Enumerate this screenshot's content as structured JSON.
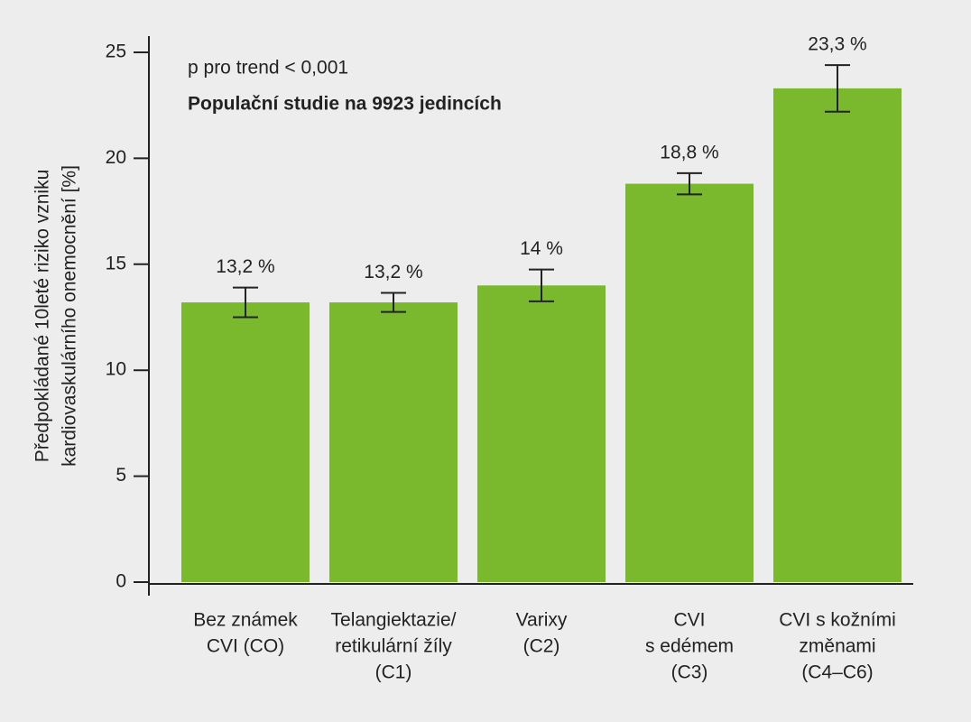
{
  "chart_data": {
    "type": "bar",
    "annotations": [
      "p pro trend < 0,001",
      "Populační studie na 9923 jedincích"
    ],
    "ylabel": [
      "Předpokládané 10leté riziko vzniku",
      "kardiovaskulárního onemocnění [%]"
    ],
    "categories": [
      [
        "Bez známek",
        "CVI (CO)"
      ],
      [
        "Telangiektazie/",
        "retikulární žíly",
        "(C1)"
      ],
      [
        "Varixy",
        "(C2)"
      ],
      [
        "CVI",
        "s edémem",
        "(C3)"
      ],
      [
        "CVI s kožními",
        "změnami",
        "(C4–C6)"
      ]
    ],
    "values": [
      13.2,
      13.2,
      14,
      18.8,
      23.3
    ],
    "value_labels": [
      "13,2 %",
      "13,2 %",
      "14 %",
      "18,8 %",
      "23,3 %"
    ],
    "errors": [
      0.7,
      0.45,
      0.75,
      0.5,
      1.1
    ],
    "color": "#7ab82e",
    "ylim": [
      0,
      25
    ],
    "yticks": [
      0,
      5,
      10,
      15,
      20,
      25
    ],
    "grid": false
  }
}
